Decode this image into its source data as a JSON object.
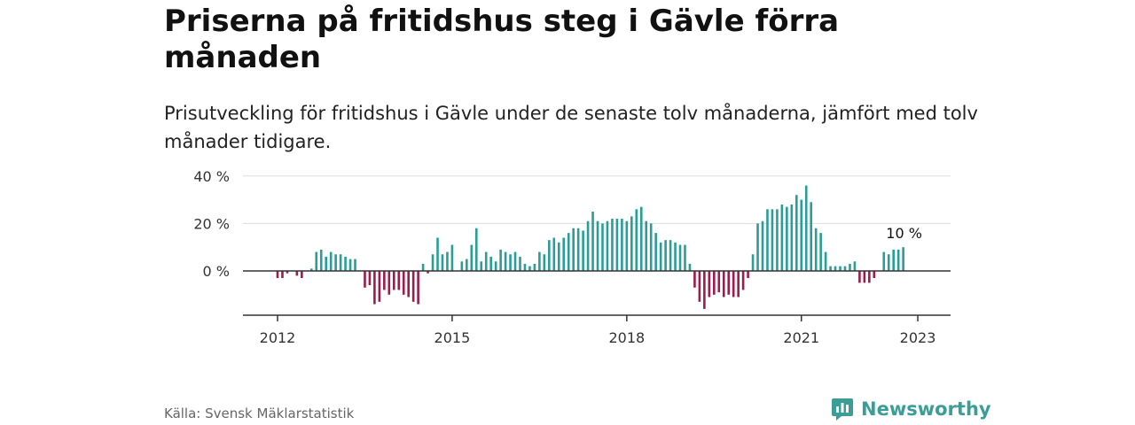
{
  "title": "Priserna på fritidshus steg i Gävle förra månaden",
  "subtitle": "Prisutveckling för fritidshus i Gävle under de senaste tolv månaderna, jämfört med tolv månader tidigare.",
  "source": "Källa: Svensk Mäklarstatistik",
  "brand": "Newsworthy",
  "colors": {
    "positive": "#2a9d95",
    "negative": "#9c1c4a",
    "grid": "#dddddd",
    "axis": "#333333"
  },
  "chart_data": {
    "type": "bar",
    "x_start": "2012-01",
    "frequency": "monthly",
    "ylim": [
      -20,
      40
    ],
    "y_ticks": [
      0,
      20,
      40
    ],
    "y_tick_labels": [
      "0 %",
      "20 %",
      "40 %"
    ],
    "x_ticks": [
      "2012",
      "2015",
      "2018",
      "2021",
      "2023"
    ],
    "x_tick_months": [
      0,
      36,
      72,
      108,
      132
    ],
    "annotation": {
      "text": "10 %",
      "value": 10
    },
    "values": [
      -3,
      -3,
      -1,
      0,
      -2,
      -3,
      0,
      1,
      8,
      9,
      6,
      8,
      7,
      7,
      6,
      5,
      5,
      0,
      -7,
      -6,
      -14,
      -13,
      -8,
      -10,
      -8,
      -8,
      -10,
      -11,
      -13,
      -14,
      3,
      -1,
      7,
      14,
      7,
      8,
      11,
      0,
      4,
      5,
      11,
      18,
      4,
      8,
      6,
      4,
      9,
      8,
      7,
      8,
      6,
      3,
      2,
      3,
      8,
      7,
      13,
      14,
      12,
      14,
      16,
      18,
      18,
      17,
      21,
      25,
      21,
      20,
      21,
      22,
      22,
      22,
      21,
      23,
      26,
      27,
      21,
      20,
      16,
      12,
      13,
      13,
      12,
      11,
      11,
      3,
      -7,
      -13,
      -16,
      -11,
      -10,
      -9,
      -11,
      -10,
      -11,
      -11,
      -8,
      -3,
      7,
      20,
      21,
      26,
      26,
      26,
      28,
      27,
      28,
      32,
      30,
      36,
      29,
      18,
      16,
      8,
      2,
      2,
      2,
      2,
      3,
      4,
      -5,
      -5,
      -5,
      -3,
      0,
      8,
      7,
      9,
      9,
      10
    ]
  }
}
